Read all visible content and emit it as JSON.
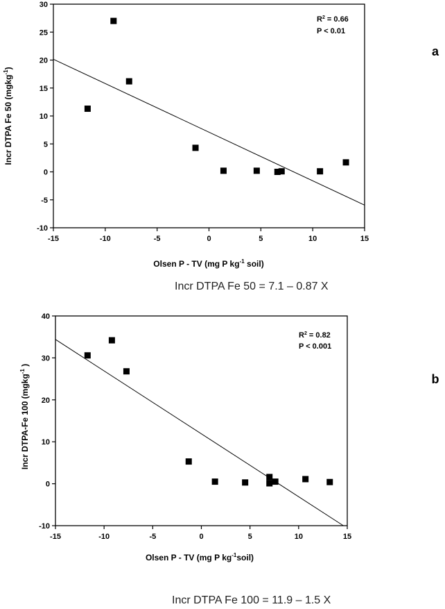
{
  "chart_data": [
    {
      "type": "scatter",
      "panel_label": "a",
      "xlabel_main": "Olsen P - TV (mg P kg",
      "xlabel_sup": "-1",
      "xlabel_tail": " soil)",
      "ylabel_main": "Incr DTPA Fe 50 (mgkg",
      "ylabel_sup": "-1",
      "ylabel_tail": ")",
      "xlim": [
        -15,
        15
      ],
      "ylim": [
        -10,
        30
      ],
      "xticks": [
        "-15",
        "-10",
        "-5",
        "0",
        "5",
        "10",
        "15"
      ],
      "yticks": [
        "-10",
        "-5",
        "0",
        "5",
        "10",
        "15",
        "20",
        "25",
        "30"
      ],
      "stats": {
        "r2_prefix": "R",
        "r2_sup": "2",
        "r2_value": " = 0.66",
        "p": "P < 0.01"
      },
      "regression": {
        "intercept": 7.1,
        "slope": -0.87
      },
      "equation": "Incr DTPA Fe 50 = 7.1 – 0.87 X",
      "points": [
        {
          "x": -11.7,
          "y": 11.3
        },
        {
          "x": -9.2,
          "y": 27.0
        },
        {
          "x": -7.7,
          "y": 16.2
        },
        {
          "x": -1.3,
          "y": 4.3
        },
        {
          "x": 1.4,
          "y": 0.2
        },
        {
          "x": 4.6,
          "y": 0.2
        },
        {
          "x": 6.6,
          "y": 0.0
        },
        {
          "x": 7.0,
          "y": 0.1
        },
        {
          "x": 10.7,
          "y": 0.1
        },
        {
          "x": 13.2,
          "y": 1.7
        }
      ]
    },
    {
      "type": "scatter",
      "panel_label": "b",
      "xlabel_main": "Olsen P - TV (mg P kg",
      "xlabel_sup": "-1",
      "xlabel_tail": "soil)",
      "ylabel_main": "Incr DTPA-Fe 100 (mgkg",
      "ylabel_sup": "-1",
      "ylabel_tail": " )",
      "xlim": [
        -15,
        15
      ],
      "ylim": [
        -10,
        40
      ],
      "xticks": [
        "-15",
        "-10",
        "-5",
        "0",
        "5",
        "10",
        "15"
      ],
      "yticks": [
        "-10",
        "0",
        "10",
        "20",
        "30",
        "40"
      ],
      "stats": {
        "r2_prefix": "R",
        "r2_sup": "2",
        "r2_value": " = 0.82",
        "p": "P < 0.001"
      },
      "regression": {
        "intercept": 11.9,
        "slope": -1.5
      },
      "equation": "Incr DTPA Fe 100 = 11.9 – 1.5 X",
      "points": [
        {
          "x": -11.7,
          "y": 30.6
        },
        {
          "x": -9.2,
          "y": 34.2
        },
        {
          "x": -7.7,
          "y": 26.8
        },
        {
          "x": -1.3,
          "y": 5.3
        },
        {
          "x": 1.4,
          "y": 0.5
        },
        {
          "x": 4.5,
          "y": 0.3
        },
        {
          "x": 7.0,
          "y": 1.6
        },
        {
          "x": 7.0,
          "y": 0.1
        },
        {
          "x": 7.6,
          "y": 0.5
        },
        {
          "x": 10.7,
          "y": 1.1
        },
        {
          "x": 13.2,
          "y": 0.4
        }
      ]
    }
  ]
}
